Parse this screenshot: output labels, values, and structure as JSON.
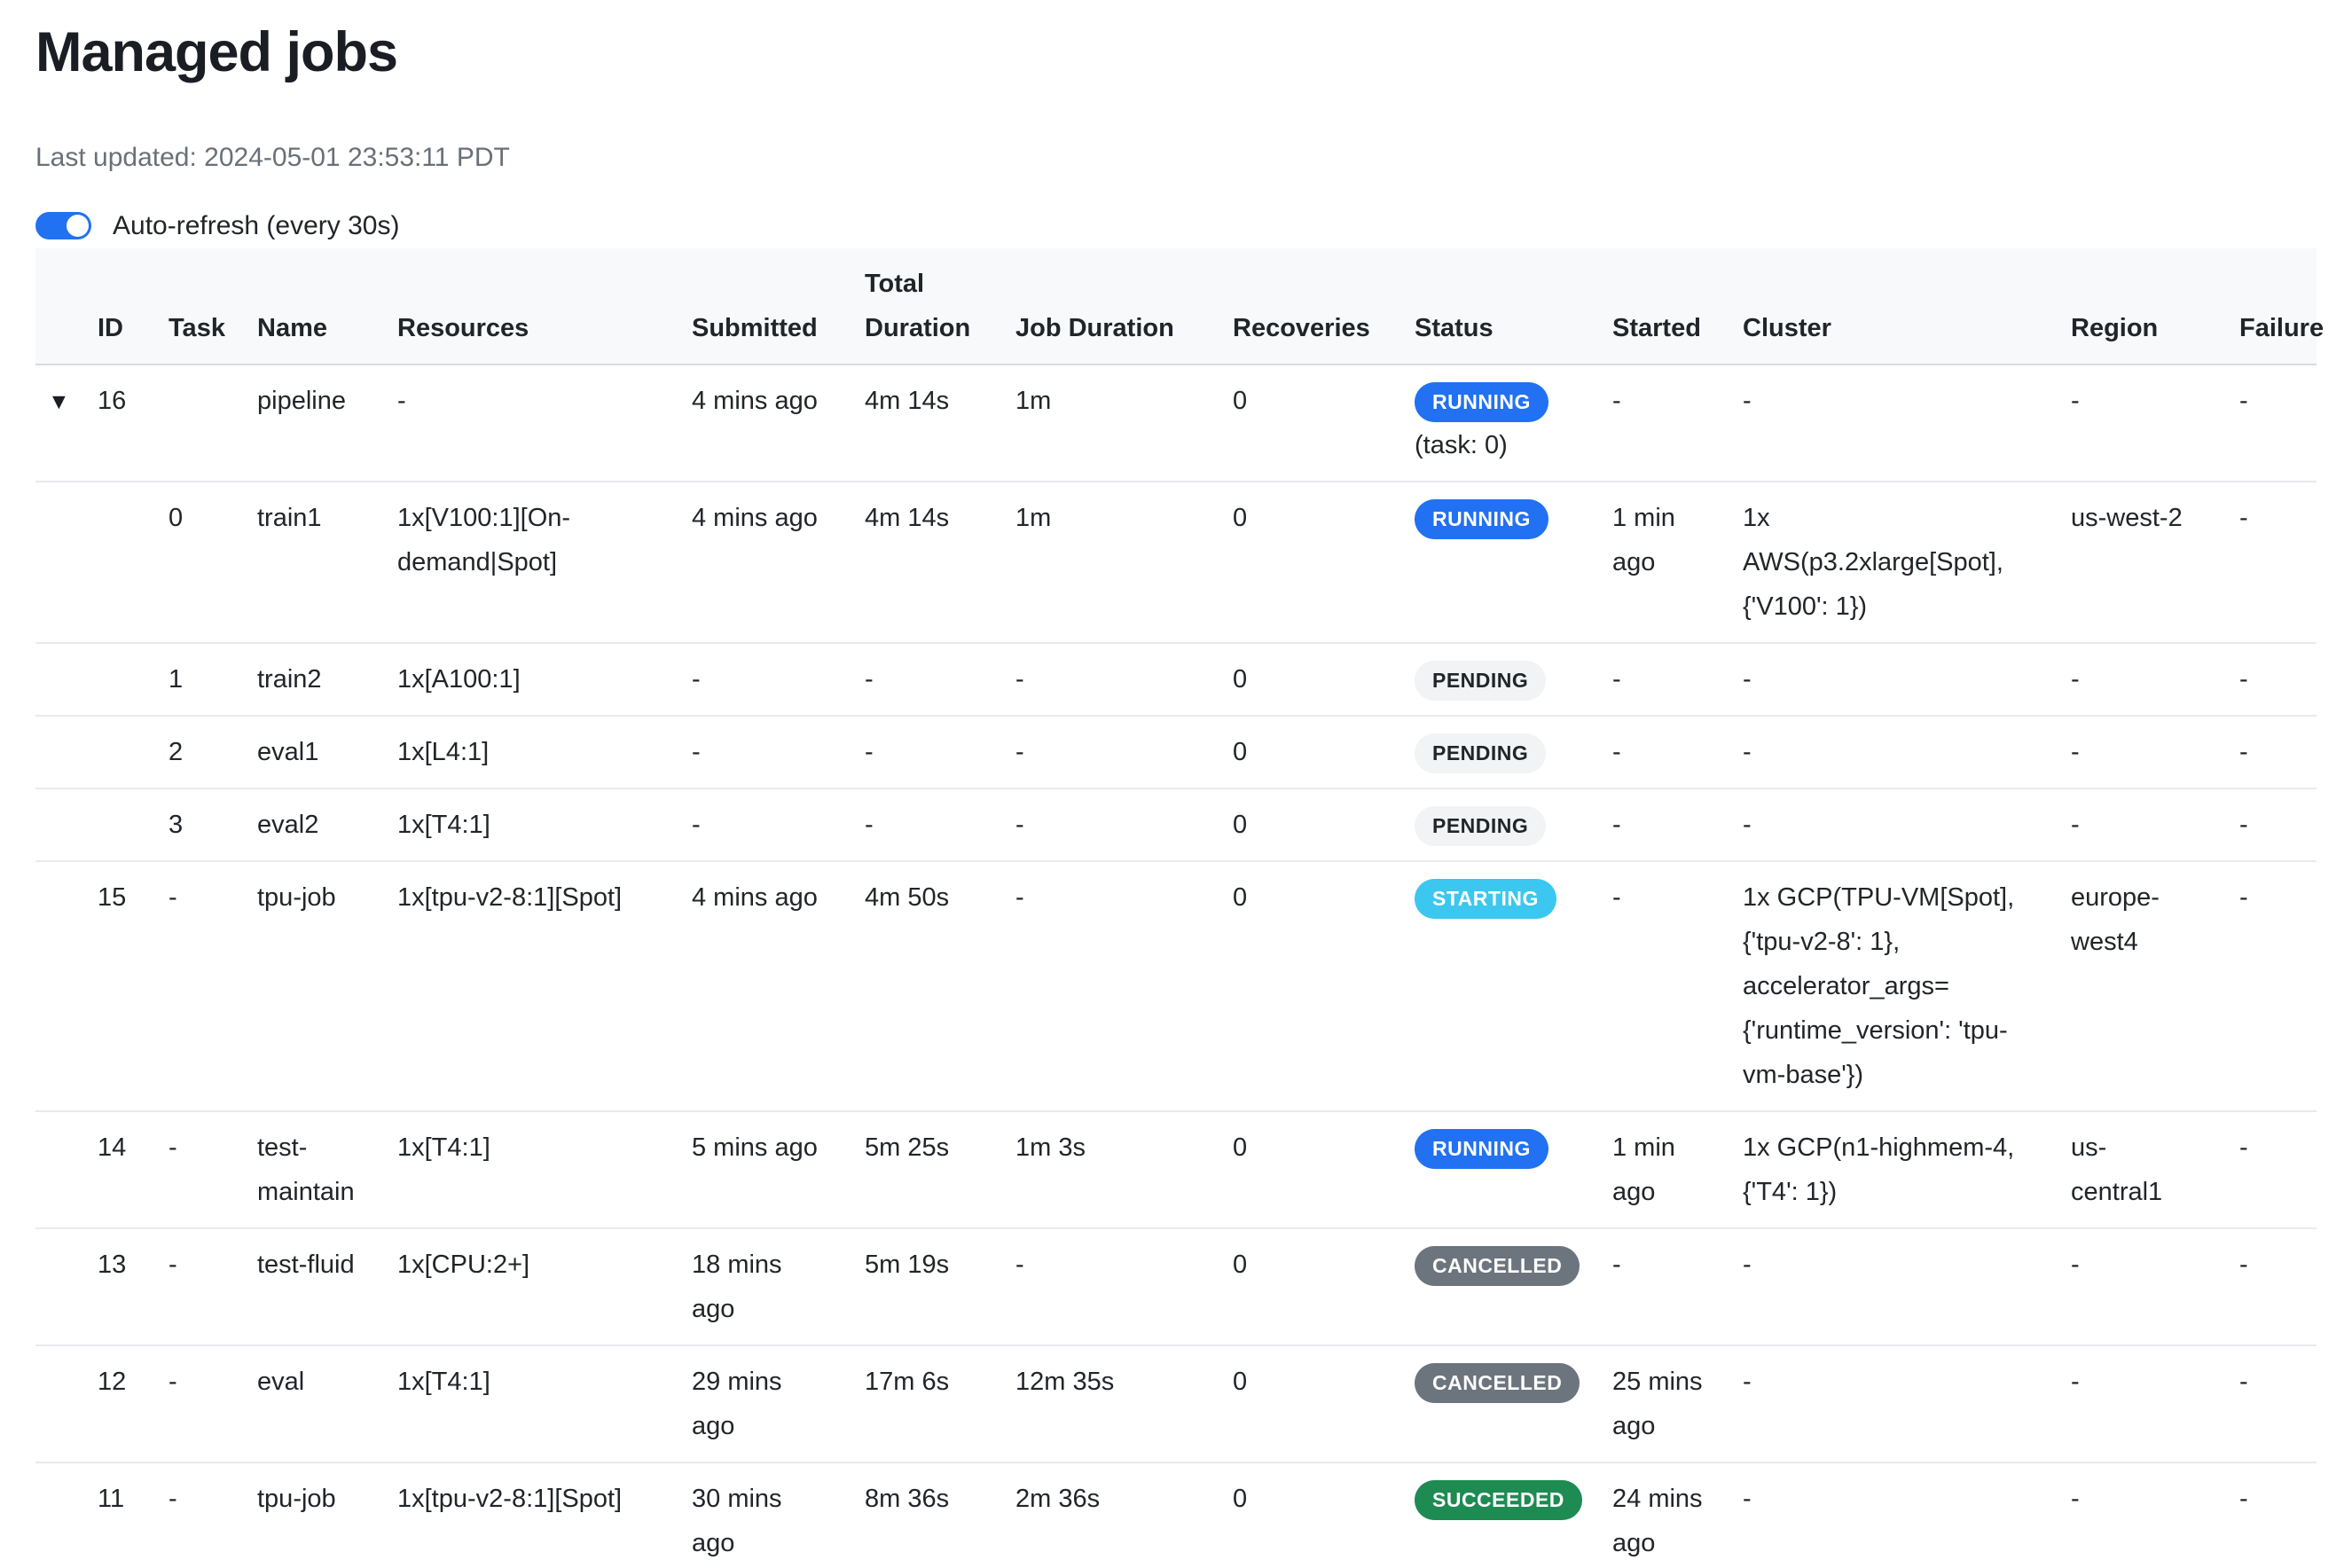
{
  "page": {
    "title": "Managed jobs",
    "last_updated": "Last updated: 2024-05-01 23:53:11 PDT"
  },
  "auto_refresh": {
    "label": "Auto-refresh (every 30s)",
    "enabled": true
  },
  "colors": {
    "accent": "#2171f2",
    "header_bg": "#f8f9fa",
    "muted_text": "#697077",
    "text": "#212529"
  },
  "badge_colors": {
    "RUNNING": {
      "bg": "#2171f2",
      "fg": "#ffffff"
    },
    "PENDING": {
      "bg": "#f1f3f5",
      "fg": "#212529"
    },
    "STARTING": {
      "bg": "#3bc7f0",
      "fg": "#ffffff"
    },
    "CANCELLED": {
      "bg": "#6c757d",
      "fg": "#ffffff"
    },
    "SUCCEEDED": {
      "bg": "#1e8b52",
      "fg": "#ffffff"
    }
  },
  "table": {
    "columns": [
      "",
      "ID",
      "Task",
      "Name",
      "Resources",
      "Submitted",
      "Total Duration",
      "Job Duration",
      "Recoveries",
      "Status",
      "Started",
      "Cluster",
      "Region",
      "Failure"
    ],
    "column_keys": [
      "caret",
      "id",
      "task",
      "name",
      "resources",
      "submitted",
      "total_duration",
      "job_duration",
      "recoveries",
      "status",
      "started",
      "cluster",
      "region",
      "failure"
    ],
    "rows": [
      {
        "caret": "▼",
        "id": "16",
        "task": "",
        "name": "pipeline",
        "resources": "-",
        "submitted": "4 mins ago",
        "total_duration": "4m 14s",
        "job_duration": "1m",
        "recoveries": "0",
        "status": "RUNNING",
        "status_note": "(task: 0)",
        "started": "-",
        "cluster": "-",
        "region": "-",
        "failure": "-"
      },
      {
        "caret": "",
        "id": "",
        "task": "0",
        "name": "train1",
        "resources": "1x[V100:1][On-demand|Spot]",
        "submitted": "4 mins ago",
        "total_duration": "4m 14s",
        "job_duration": "1m",
        "recoveries": "0",
        "status": "RUNNING",
        "status_note": "",
        "started": "1 min ago",
        "cluster": "1x AWS(p3.2xlarge[Spot], {'V100': 1})",
        "region": "us-west-2",
        "failure": "-"
      },
      {
        "caret": "",
        "id": "",
        "task": "1",
        "name": "train2",
        "resources": "1x[A100:1]",
        "submitted": "-",
        "total_duration": "-",
        "job_duration": "-",
        "recoveries": "0",
        "status": "PENDING",
        "status_note": "",
        "started": "-",
        "cluster": "-",
        "region": "-",
        "failure": "-"
      },
      {
        "caret": "",
        "id": "",
        "task": "2",
        "name": "eval1",
        "resources": "1x[L4:1]",
        "submitted": "-",
        "total_duration": "-",
        "job_duration": "-",
        "recoveries": "0",
        "status": "PENDING",
        "status_note": "",
        "started": "-",
        "cluster": "-",
        "region": "-",
        "failure": "-"
      },
      {
        "caret": "",
        "id": "",
        "task": "3",
        "name": "eval2",
        "resources": "1x[T4:1]",
        "submitted": "-",
        "total_duration": "-",
        "job_duration": "-",
        "recoveries": "0",
        "status": "PENDING",
        "status_note": "",
        "started": "-",
        "cluster": "-",
        "region": "-",
        "failure": "-"
      },
      {
        "caret": "",
        "id": "15",
        "task": "-",
        "name": "tpu-job",
        "resources": "1x[tpu-v2-8:1][Spot]",
        "submitted": "4 mins ago",
        "total_duration": "4m 50s",
        "job_duration": "-",
        "recoveries": "0",
        "status": "STARTING",
        "status_note": "",
        "started": "-",
        "cluster": "1x GCP(TPU-VM[Spot], {'tpu-v2-8': 1}, accelerator_args={'runtime_version': 'tpu-vm-base'})",
        "region": "europe-west4",
        "failure": "-"
      },
      {
        "caret": "",
        "id": "14",
        "task": "-",
        "name": "test-maintain",
        "resources": "1x[T4:1]",
        "submitted": "5 mins ago",
        "total_duration": "5m 25s",
        "job_duration": "1m 3s",
        "recoveries": "0",
        "status": "RUNNING",
        "status_note": "",
        "started": "1 min ago",
        "cluster": "1x GCP(n1-highmem-4, {'T4': 1})",
        "region": "us-central1",
        "failure": "-"
      },
      {
        "caret": "",
        "id": "13",
        "task": "-",
        "name": "test-fluid",
        "resources": "1x[CPU:2+]",
        "submitted": "18 mins ago",
        "total_duration": "5m 19s",
        "job_duration": "-",
        "recoveries": "0",
        "status": "CANCELLED",
        "status_note": "",
        "started": "-",
        "cluster": "-",
        "region": "-",
        "failure": "-"
      },
      {
        "caret": "",
        "id": "12",
        "task": "-",
        "name": "eval",
        "resources": "1x[T4:1]",
        "submitted": "29 mins ago",
        "total_duration": "17m 6s",
        "job_duration": "12m 35s",
        "recoveries": "0",
        "status": "CANCELLED",
        "status_note": "",
        "started": "25 mins ago",
        "cluster": "-",
        "region": "-",
        "failure": "-"
      },
      {
        "caret": "",
        "id": "11",
        "task": "-",
        "name": "tpu-job",
        "resources": "1x[tpu-v2-8:1][Spot]",
        "submitted": "30 mins ago",
        "total_duration": "8m 36s",
        "job_duration": "2m 36s",
        "recoveries": "0",
        "status": "SUCCEEDED",
        "status_note": "",
        "started": "24 mins ago",
        "cluster": "-",
        "region": "-",
        "failure": "-"
      }
    ]
  }
}
